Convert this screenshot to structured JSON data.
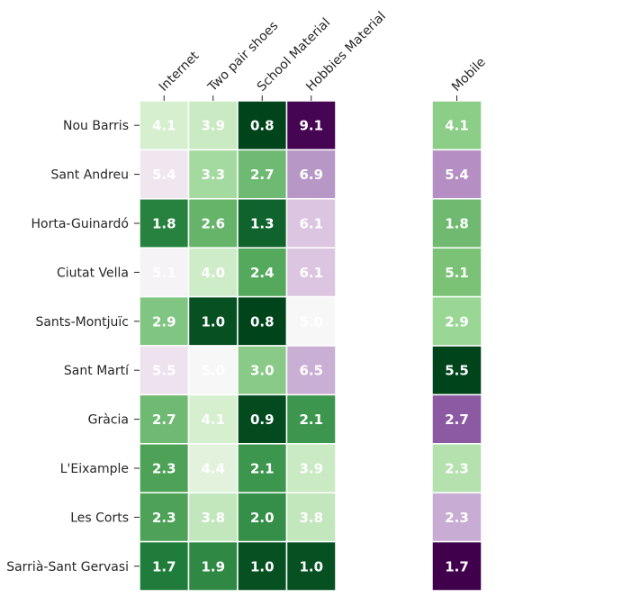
{
  "chart_data": [
    {
      "type": "heatmap",
      "title": "",
      "xlabel": "",
      "ylabel": "",
      "columns": [
        "Internet",
        "Two pair shoes",
        "School Material",
        "Hobbies Material"
      ],
      "rows": [
        "Nou Barris",
        "Sant Andreu",
        "Horta-Guinardó",
        "Ciutat Vella",
        "Sants-Montjuïc",
        "Sant Martí",
        "Gràcia",
        "L'Eixample",
        "Les Corts",
        "Sarrià-Sant Gervasi"
      ],
      "values": [
        [
          4.1,
          3.9,
          0.8,
          9.1
        ],
        [
          5.4,
          3.3,
          2.7,
          6.9
        ],
        [
          1.8,
          2.6,
          1.3,
          6.1
        ],
        [
          5.1,
          4.0,
          2.4,
          6.1
        ],
        [
          2.9,
          1.0,
          0.8,
          5.0
        ],
        [
          5.5,
          5.0,
          3.0,
          6.5
        ],
        [
          2.7,
          4.1,
          0.9,
          2.1
        ],
        [
          2.3,
          4.4,
          2.1,
          3.9
        ],
        [
          2.3,
          3.8,
          2.0,
          3.8
        ],
        [
          1.7,
          1.9,
          1.0,
          1.0
        ]
      ],
      "colormap": "PRGn",
      "center": 5.0,
      "grid": false,
      "legend": "none"
    },
    {
      "type": "heatmap",
      "title": "",
      "xlabel": "",
      "ylabel": "",
      "columns": [
        "Mobile"
      ],
      "rows": [
        "Nou Barris",
        "Sant Andreu",
        "Horta-Guinardó",
        "Ciutat Vella",
        "Sants-Montjuïc",
        "Sant Martí",
        "Gràcia",
        "L'Eixample",
        "Les Corts",
        "Sarrià-Sant Gervasi"
      ],
      "values": [
        [
          4.1
        ],
        [
          5.4
        ],
        [
          1.8
        ],
        [
          5.1
        ],
        [
          2.9
        ],
        [
          5.5
        ],
        [
          2.7
        ],
        [
          2.3
        ],
        [
          2.3
        ],
        [
          1.7
        ]
      ],
      "cell_colors": [
        "#8ccd87",
        "#b58fc3",
        "#6fba70",
        "#7cc276",
        "#9ad694",
        "#00441b",
        "#8b5aa3",
        "#b4e1ae",
        "#c9acd4",
        "#40004b"
      ],
      "colormap": "PRGn",
      "grid": false,
      "legend": "none"
    }
  ],
  "colors": {
    "background": "#ffffff",
    "cell_text": "#ffffff",
    "tick_text": "#262626",
    "cell_border": "#ffffff"
  }
}
